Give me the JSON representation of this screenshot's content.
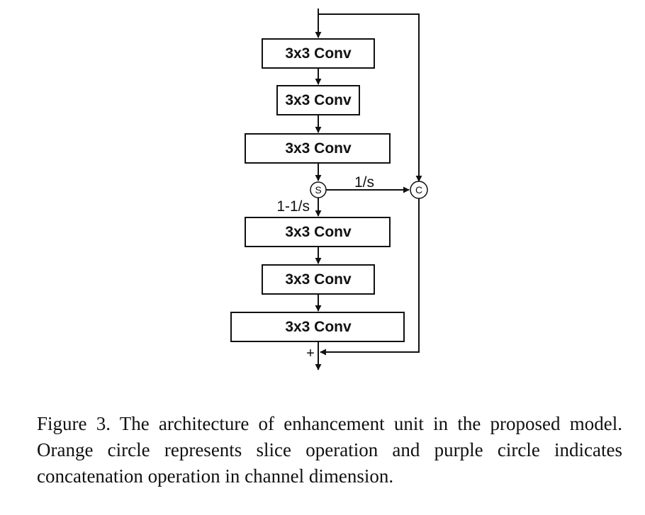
{
  "figure": {
    "blocks": [
      {
        "label": "3x3 Conv"
      },
      {
        "label": "3x3 Conv"
      },
      {
        "label": "3x3 Conv"
      },
      {
        "label": "3x3 Conv"
      },
      {
        "label": "3x3 Conv"
      },
      {
        "label": "3x3 Conv"
      }
    ],
    "slice_node": {
      "label": "S"
    },
    "concat_node": {
      "label": "C"
    },
    "add_node": {
      "label": "+"
    },
    "edge_labels": {
      "slice_to_concat": "1/s",
      "slice_to_next": "1-1/s"
    },
    "caption": "Figure 3. The architecture of enhancement unit in the proposed model. Orange circle represents slice operation and purple circle indicates concatenation operation in channel dimension."
  }
}
